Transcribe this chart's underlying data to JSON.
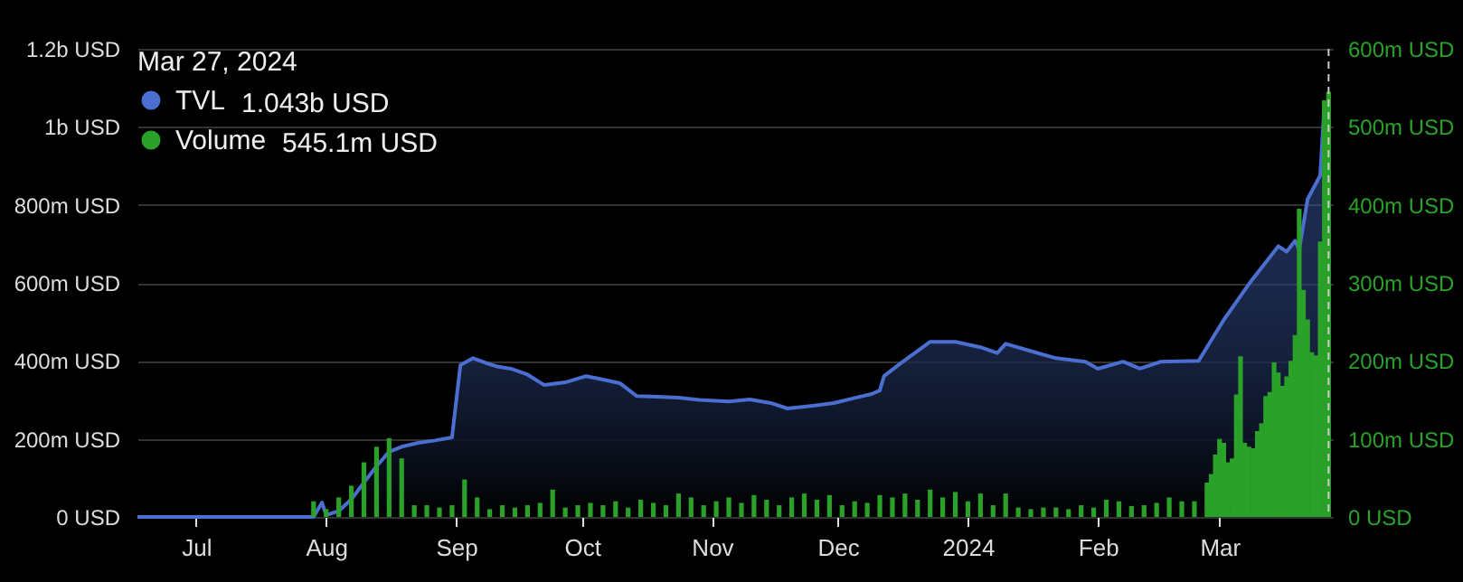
{
  "chart_data": {
    "type": "area",
    "legend_title": "Mar 27, 2024",
    "annotations": [
      "1.043b USD",
      "545.1m USD"
    ],
    "xlim": [
      "2023-06-17",
      "2024-03-28"
    ],
    "xticks": [
      {
        "value": "2023-07-01",
        "label": "Jul"
      },
      {
        "value": "2023-08-01",
        "label": "Aug"
      },
      {
        "value": "2023-09-01",
        "label": "Sep"
      },
      {
        "value": "2023-10-01",
        "label": "Oct"
      },
      {
        "value": "2023-11-01",
        "label": "Nov"
      },
      {
        "value": "2023-12-01",
        "label": "Dec"
      },
      {
        "value": "2024-01-01",
        "label": "2024"
      },
      {
        "value": "2024-02-01",
        "label": "Feb"
      },
      {
        "value": "2024-03-01",
        "label": "Mar"
      }
    ],
    "ylim": [
      0,
      1200000000
    ],
    "yticks": [
      {
        "value": 0,
        "label": "0 USD"
      },
      {
        "value": 200000000,
        "label": "200m USD"
      },
      {
        "value": 400000000,
        "label": "400m USD"
      },
      {
        "value": 600000000,
        "label": "600m USD"
      },
      {
        "value": 800000000,
        "label": "800m USD"
      },
      {
        "value": 1000000000,
        "label": "1b USD"
      },
      {
        "value": 1200000000,
        "label": "1.2b USD"
      }
    ],
    "y2lim": [
      0,
      600000000
    ],
    "y2ticks": [
      {
        "value": 0,
        "label": "0 USD"
      },
      {
        "value": 100000000,
        "label": "100m USD"
      },
      {
        "value": 200000000,
        "label": "200m USD"
      },
      {
        "value": 300000000,
        "label": "300m USD"
      },
      {
        "value": 400000000,
        "label": "400m USD"
      },
      {
        "value": 500000000,
        "label": "500m USD"
      },
      {
        "value": 600000000,
        "label": "600m USD"
      }
    ],
    "grid": "y",
    "legend": "top left",
    "ref_lines": [
      {
        "axis": "x",
        "value": "2024-03-27",
        "color": "#cccccc",
        "line_style": "dashed"
      }
    ],
    "series": [
      {
        "name": "TVL",
        "color": "#4a6fd0",
        "x": [
          "2023-06-17",
          "2023-07-29",
          "2023-07-31",
          "2023-08-01",
          "2023-08-04",
          "2023-08-07",
          "2023-08-10",
          "2023-08-13",
          "2023-08-16",
          "2023-08-19",
          "2023-08-23",
          "2023-08-27",
          "2023-08-31",
          "2023-09-02",
          "2023-09-05",
          "2023-09-08",
          "2023-09-11",
          "2023-09-14",
          "2023-09-18",
          "2023-09-22",
          "2023-09-27",
          "2023-10-02",
          "2023-10-06",
          "2023-10-10",
          "2023-10-14",
          "2023-10-19",
          "2023-10-24",
          "2023-10-29",
          "2023-11-05",
          "2023-11-10",
          "2023-11-15",
          "2023-11-19",
          "2023-11-25",
          "2023-11-30",
          "2023-12-05",
          "2023-12-09",
          "2023-12-11",
          "2023-12-12",
          "2023-12-16",
          "2023-12-23",
          "2023-12-29",
          "2024-01-04",
          "2024-01-08",
          "2024-01-10",
          "2024-01-16",
          "2024-01-22",
          "2024-01-29",
          "2024-02-01",
          "2024-02-07",
          "2024-02-11",
          "2024-02-16",
          "2024-02-25",
          "2024-03-02",
          "2024-03-08",
          "2024-03-15",
          "2024-03-17",
          "2024-03-19",
          "2024-03-20",
          "2024-03-22",
          "2024-03-25",
          "2024-03-26",
          "2024-03-27"
        ],
        "values": [
          0,
          0,
          37000000,
          5000000,
          15000000,
          45000000,
          88000000,
          130000000,
          167000000,
          180000000,
          190000000,
          196000000,
          204000000,
          389000000,
          407000000,
          395000000,
          385000000,
          380000000,
          365000000,
          338000000,
          345000000,
          361000000,
          352000000,
          343000000,
          310000000,
          308000000,
          306000000,
          300000000,
          296000000,
          301000000,
          292000000,
          278000000,
          285000000,
          292000000,
          305000000,
          315000000,
          324000000,
          361000000,
          394000000,
          449000000,
          449000000,
          435000000,
          420000000,
          444000000,
          425000000,
          407000000,
          398000000,
          380000000,
          398000000,
          380000000,
          398000000,
          400000000,
          505000000,
          597000000,
          694000000,
          680000000,
          708000000,
          685000000,
          815000000,
          875000000,
          1060000000,
          1043000000
        ]
      },
      {
        "name": "Volume",
        "type": "bar",
        "axis": "y2",
        "color": "#2aa22a",
        "x": [
          "2023-07-29",
          "2023-08-01",
          "2023-08-04",
          "2023-08-07",
          "2023-08-10",
          "2023-08-13",
          "2023-08-16",
          "2023-08-19",
          "2023-08-22",
          "2023-08-25",
          "2023-08-28",
          "2023-08-31",
          "2023-09-03",
          "2023-09-06",
          "2023-09-09",
          "2023-09-12",
          "2023-09-15",
          "2023-09-18",
          "2023-09-21",
          "2023-09-24",
          "2023-09-27",
          "2023-09-30",
          "2023-10-03",
          "2023-10-06",
          "2023-10-09",
          "2023-10-12",
          "2023-10-15",
          "2023-10-18",
          "2023-10-21",
          "2023-10-24",
          "2023-10-27",
          "2023-10-30",
          "2023-11-02",
          "2023-11-05",
          "2023-11-08",
          "2023-11-11",
          "2023-11-14",
          "2023-11-17",
          "2023-11-20",
          "2023-11-23",
          "2023-11-26",
          "2023-11-29",
          "2023-12-02",
          "2023-12-05",
          "2023-12-08",
          "2023-12-11",
          "2023-12-14",
          "2023-12-17",
          "2023-12-20",
          "2023-12-23",
          "2023-12-26",
          "2023-12-29",
          "2024-01-01",
          "2024-01-04",
          "2024-01-07",
          "2024-01-10",
          "2024-01-13",
          "2024-01-16",
          "2024-01-19",
          "2024-01-22",
          "2024-01-25",
          "2024-01-28",
          "2024-01-31",
          "2024-02-03",
          "2024-02-06",
          "2024-02-09",
          "2024-02-12",
          "2024-02-15",
          "2024-02-18",
          "2024-02-21",
          "2024-02-24",
          "2024-02-27",
          "2024-02-28",
          "2024-02-29",
          "2024-03-01",
          "2024-03-02",
          "2024-03-03",
          "2024-03-04",
          "2024-03-05",
          "2024-03-06",
          "2024-03-07",
          "2024-03-08",
          "2024-03-09",
          "2024-03-10",
          "2024-03-11",
          "2024-03-12",
          "2024-03-13",
          "2024-03-14",
          "2024-03-15",
          "2024-03-16",
          "2024-03-17",
          "2024-03-18",
          "2024-03-19",
          "2024-03-20",
          "2024-03-21",
          "2024-03-22",
          "2024-03-23",
          "2024-03-24",
          "2024-03-25",
          "2024-03-26",
          "2024-03-27"
        ],
        "values": [
          20000000,
          10000000,
          25000000,
          40000000,
          70000000,
          90000000,
          101000000,
          75000000,
          15000000,
          15000000,
          12000000,
          15000000,
          48000000,
          25000000,
          10000000,
          15000000,
          12000000,
          15000000,
          18000000,
          35000000,
          12000000,
          15000000,
          18000000,
          15000000,
          20000000,
          12000000,
          22000000,
          18000000,
          15000000,
          30000000,
          25000000,
          15000000,
          20000000,
          25000000,
          18000000,
          28000000,
          22000000,
          15000000,
          25000000,
          30000000,
          22000000,
          28000000,
          15000000,
          20000000,
          18000000,
          28000000,
          25000000,
          30000000,
          22000000,
          35000000,
          25000000,
          32000000,
          20000000,
          30000000,
          15000000,
          30000000,
          12000000,
          10000000,
          12000000,
          12000000,
          10000000,
          15000000,
          12000000,
          22000000,
          20000000,
          14000000,
          15000000,
          18000000,
          25000000,
          20000000,
          20000000,
          44000000,
          55000000,
          80000000,
          100000000,
          95000000,
          70000000,
          75000000,
          157000000,
          206000000,
          95000000,
          90000000,
          88000000,
          110000000,
          120000000,
          155000000,
          160000000,
          198000000,
          185000000,
          168000000,
          180000000,
          200000000,
          233000000,
          395000000,
          291000000,
          253000000,
          211000000,
          207000000,
          353000000,
          534000000,
          545100000
        ]
      }
    ]
  }
}
